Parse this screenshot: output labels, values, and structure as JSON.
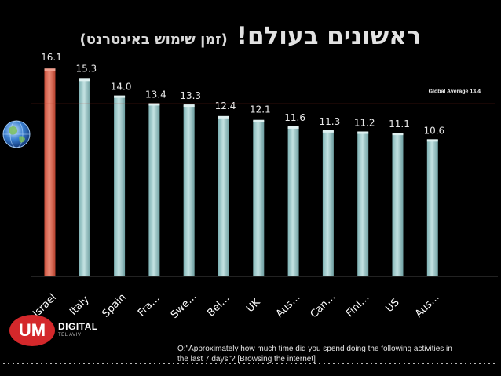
{
  "title": {
    "main": "ראשונים בעולם!",
    "sub": "(זמן שימוש באינטרנט)"
  },
  "chart_data": {
    "type": "bar",
    "categories": [
      "Israel",
      "Italy",
      "Spain",
      "Fra…",
      "Swe…",
      "Bel…",
      "UK",
      "Aus…",
      "Can…",
      "Finl…",
      "US",
      "Aus…"
    ],
    "values": [
      16.1,
      15.3,
      14.0,
      13.4,
      13.3,
      12.4,
      12.1,
      11.6,
      11.3,
      11.2,
      11.1,
      10.6
    ],
    "value_labels": [
      "16.1",
      "15.3",
      "14.0",
      "13.4",
      "13.3",
      "12.4",
      "12.1",
      "11.6",
      "11.3",
      "11.2",
      "11.1",
      "10.6"
    ],
    "highlight_index": 0,
    "reference_line": {
      "value": 13.4,
      "label": "Global Average 13.4"
    },
    "ylim": [
      0,
      16.6
    ],
    "title": "",
    "xlabel": "",
    "ylabel": "",
    "colors": {
      "highlight": "#dd6a55",
      "bar": "#a9cfd0",
      "line": "#c0392b"
    }
  },
  "logo": {
    "brand": "UM",
    "name": "DIGITAL",
    "city": "TEL AVIV"
  },
  "footnote": {
    "line1": "Q:\"Approximately how much time did you spend doing the following activities in",
    "line2": "the last 7 days\"? [Browsing the internet]"
  }
}
